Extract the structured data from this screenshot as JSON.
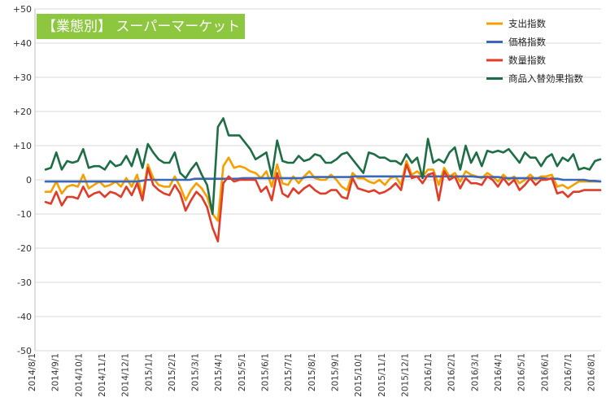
{
  "chart_data": {
    "type": "line",
    "title": "【業態別】 スーパーマーケット",
    "title_bg_color": "#8dc63f",
    "ylim": [
      -50,
      50
    ],
    "y_ticks": [
      "+50",
      "+40",
      "+30",
      "+20",
      "+10",
      "0",
      "-10",
      "-20",
      "-30",
      "-40",
      "-50"
    ],
    "y_tick_values": [
      50,
      40,
      30,
      20,
      10,
      0,
      -10,
      -20,
      -30,
      -40,
      -50
    ],
    "grid": "horizontal",
    "legend_position": "top-right",
    "x_tick_labels": [
      "2014/8/1",
      "2014/9/1",
      "2014/10/1",
      "2014/11/1",
      "2014/12/1",
      "2015/1/1",
      "2015/2/1",
      "2015/3/1",
      "2015/4/1",
      "2015/5/1",
      "2015/6/1",
      "2015/7/1",
      "2015/8/1",
      "2015/9/1",
      "2015/10/1",
      "2015/11/1",
      "2015/12/1",
      "2016/1/1",
      "2016/2/1",
      "2016/3/1",
      "2016/4/1",
      "2016/5/1",
      "2016/6/1",
      "2016/7/1",
      "2016/8/1"
    ],
    "x_start": "2014/9/1",
    "x_interval": "week",
    "series": [
      {
        "name": "支出指数",
        "color": "#f5a000",
        "values": [
          -3.5,
          -3.5,
          -0.5,
          -4,
          -2,
          -1.5,
          -2,
          1.5,
          -2.5,
          -1.5,
          -0.5,
          -2,
          -1.5,
          -0.5,
          -2,
          0.5,
          -2,
          1.5,
          -5,
          4.5,
          0.5,
          -1.5,
          -2,
          -2,
          1,
          -2,
          -6,
          -3,
          -1,
          -2.5,
          -5,
          -10,
          -12,
          4,
          6.5,
          3.5,
          4,
          3.5,
          2.5,
          2,
          0.5,
          2.5,
          -2,
          4.5,
          -1,
          -1.5,
          1,
          -1,
          1,
          2.5,
          0.5,
          0,
          0,
          1.5,
          0,
          -2,
          -3,
          2,
          0.5,
          0.5,
          -0.5,
          -1,
          0,
          -1.5,
          0.5,
          1,
          -1.5,
          5.5,
          1.5,
          2.5,
          1,
          3,
          3,
          -1.5,
          3.5,
          1,
          2,
          -0.5,
          2.5,
          1.5,
          1,
          0.5,
          2,
          1,
          -0.5,
          1.5,
          0,
          1,
          -1,
          0,
          1.5,
          0,
          1,
          1,
          1.5,
          -2,
          -1.5,
          -2.5,
          -1.5,
          -0.5,
          -0.5,
          -0.5,
          -0.5,
          -0.5
        ]
      },
      {
        "name": "価格指数",
        "color": "#3a67b8",
        "values": [
          -0.5,
          -0.5,
          -0.5,
          -0.5,
          -0.5,
          -0.5,
          -0.5,
          -0.5,
          -0.5,
          -0.5,
          -0.5,
          -0.5,
          -0.5,
          -0.5,
          -0.5,
          -0.5,
          -0.5,
          -0.5,
          -0.3,
          0,
          0,
          0,
          0,
          0,
          0,
          0,
          0,
          0,
          0.3,
          0.3,
          0.3,
          0.3,
          0.3,
          0.3,
          0.3,
          0.3,
          0.3,
          0.5,
          0.5,
          0.5,
          0.5,
          0.5,
          0.5,
          0.5,
          0.5,
          0.5,
          0.5,
          0.5,
          0.5,
          0.8,
          0.8,
          0.8,
          0.8,
          0.8,
          0.8,
          0.8,
          0.8,
          0.8,
          1,
          1,
          1,
          1,
          1,
          1,
          1,
          1,
          1,
          1,
          1,
          1,
          1,
          1,
          1,
          1,
          1,
          1,
          1,
          1,
          1,
          1,
          1,
          0.8,
          0.8,
          0.8,
          0.8,
          0.8,
          0.5,
          0.5,
          0.5,
          0.5,
          0.5,
          0.5,
          0.5,
          0.5,
          0.3,
          0.3,
          0.3,
          0,
          0,
          0,
          0,
          0,
          -0.3,
          -0.3,
          -0.5
        ]
      },
      {
        "name": "数量指数",
        "color": "#e03c2a",
        "values": [
          -6.5,
          -7,
          -3.5,
          -7.5,
          -5,
          -5,
          -5.5,
          -2,
          -5,
          -4,
          -3.5,
          -5,
          -3.5,
          -4,
          -5,
          -2,
          -4.5,
          -1,
          -6,
          3.5,
          -1.5,
          -3,
          -4,
          -4.5,
          -1.5,
          -4,
          -9,
          -6,
          -3.5,
          -5,
          -8,
          -14,
          -18,
          -1,
          1,
          -0.5,
          0,
          0,
          0,
          0,
          -3.5,
          -2,
          -6,
          2,
          -4,
          -5,
          -2.5,
          -4,
          -2.5,
          -1.5,
          -3,
          -4,
          -4,
          -3,
          -3,
          -5,
          -5.5,
          0.5,
          -2.5,
          -3,
          -3.5,
          -3,
          -4,
          -3.5,
          -2.5,
          -1,
          -3,
          4.5,
          0.5,
          1,
          -1,
          1.5,
          2,
          -6,
          2.5,
          0,
          1,
          -2.5,
          0.5,
          -1,
          -1,
          -1.5,
          1,
          0,
          -2,
          0.5,
          -1.5,
          0,
          -3,
          -1.5,
          0.5,
          -1.5,
          0,
          0,
          0.5,
          -4,
          -3.5,
          -5,
          -3.5,
          -3.5,
          -3,
          -3,
          -3,
          -3
        ]
      },
      {
        "name": "商品入替効果指数",
        "color": "#1e6e45",
        "values": [
          3,
          3.5,
          8,
          3,
          5.5,
          5,
          5.5,
          9,
          3.5,
          4,
          4,
          3,
          5.5,
          4,
          4.5,
          7,
          4,
          9,
          3.5,
          10.5,
          8,
          6,
          5,
          5,
          8,
          2,
          0.5,
          3,
          5,
          1.5,
          -1.5,
          -10,
          15.5,
          18,
          13,
          13,
          13,
          11,
          9,
          6,
          7,
          8,
          1,
          11.5,
          5.5,
          5,
          5,
          7,
          5.5,
          6,
          7.5,
          7,
          5,
          5,
          6,
          7.5,
          8,
          6,
          4,
          2,
          8,
          7.5,
          6.5,
          6.5,
          5.5,
          5.5,
          4.5,
          7.5,
          5,
          6.5,
          0.5,
          12,
          5,
          6,
          5,
          8,
          9.5,
          3,
          10,
          5,
          8,
          4,
          8.5,
          8,
          8.5,
          8,
          9,
          7,
          5,
          8,
          6.5,
          6.5,
          4,
          6.5,
          7.5,
          4,
          6.5,
          5.5,
          7.5,
          3,
          3.5,
          3,
          5.5,
          6
        ]
      }
    ]
  }
}
